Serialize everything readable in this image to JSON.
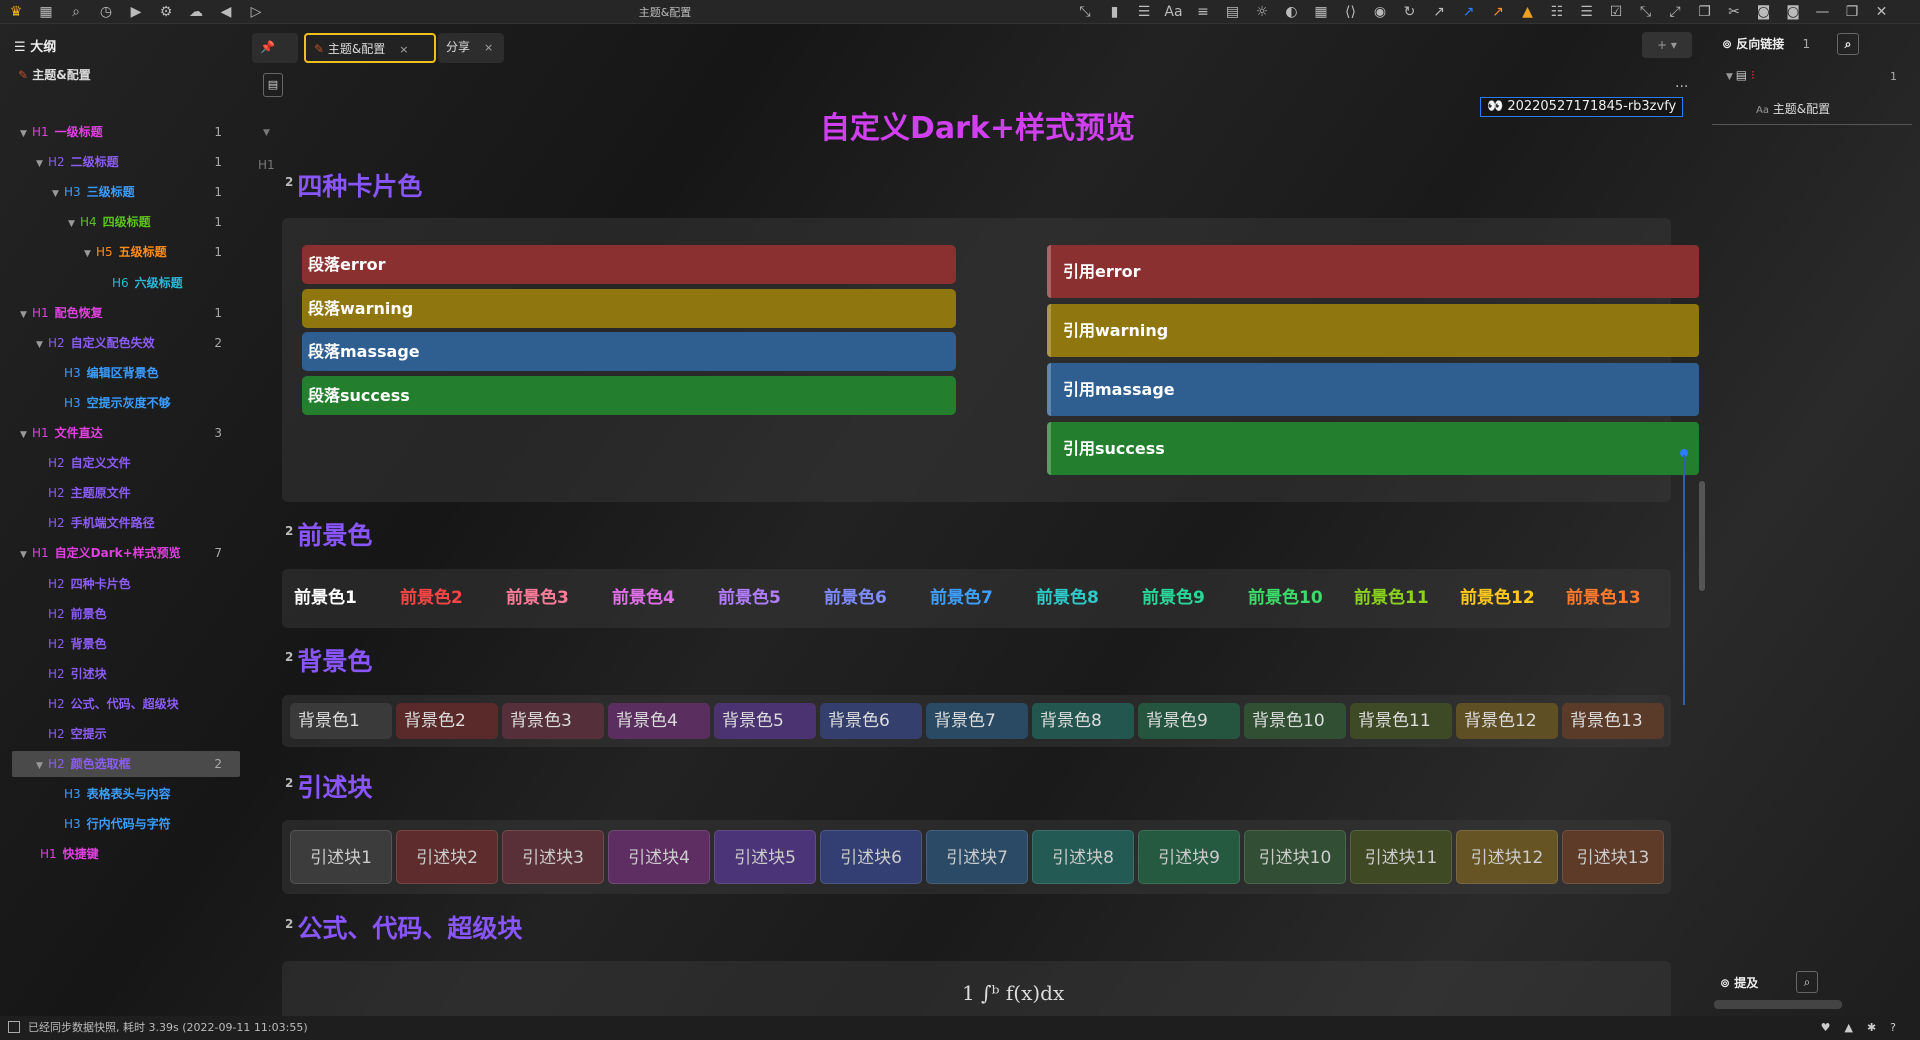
{
  "window": {
    "title": "主题&配置"
  },
  "toolbar": {
    "left_icons": [
      "crown-icon",
      "calendar-icon",
      "search-icon",
      "history-icon",
      "play-icon",
      "gear-icon",
      "cloud-icon",
      "back-icon",
      "forward-icon"
    ],
    "right_icons": [
      "collapse-icon",
      "bookmark-icon",
      "outline-icon",
      "font-icon",
      "align-icon",
      "list-panel-icon",
      "bulb-icon",
      "theme-icon",
      "keyboard-icon",
      "code-icon",
      "eye-icon",
      "refresh-icon",
      "arrow-up-right-icon",
      "arrow-blue-icon",
      "arrow-orange-icon",
      "image-icon",
      "bullet-list-icon",
      "numbered-list-icon",
      "checkbox-icon",
      "shrink-icon",
      "expand-icon",
      "copy-icon",
      "cut-icon",
      "bucket-icon",
      "bucket2-icon",
      "minimize-icon",
      "restore-icon",
      "close-icon"
    ]
  },
  "sidebar": {
    "title": "大纲",
    "doc": "主题&配置",
    "items": [
      {
        "h": "H1",
        "text": "一级标题",
        "count": "1",
        "level": 1,
        "arrow": true
      },
      {
        "h": "H2",
        "text": "二级标题",
        "count": "1",
        "level": 2,
        "arrow": true
      },
      {
        "h": "H3",
        "text": "三级标题",
        "count": "1",
        "level": 3,
        "arrow": true
      },
      {
        "h": "H4",
        "text": "四级标题",
        "count": "1",
        "level": 4,
        "arrow": true
      },
      {
        "h": "H5",
        "text": "五级标题",
        "count": "1",
        "level": 5,
        "arrow": true
      },
      {
        "h": "H6",
        "text": "六级标题",
        "count": "",
        "level": 6,
        "arrow": false
      },
      {
        "h": "H1",
        "text": "配色恢复",
        "count": "1",
        "level": 1,
        "arrow": true
      },
      {
        "h": "H2",
        "text": "自定义配色失效",
        "count": "2",
        "level": 2,
        "arrow": true
      },
      {
        "h": "H3",
        "text": "编辑区背景色",
        "count": "",
        "level": 3,
        "arrow": false
      },
      {
        "h": "H3",
        "text": "空提示灰度不够",
        "count": "",
        "level": 3,
        "arrow": false
      },
      {
        "h": "H1",
        "text": "文件直达",
        "count": "3",
        "level": 1,
        "arrow": true
      },
      {
        "h": "H2",
        "text": "自定义文件",
        "count": "",
        "level": 2,
        "arrow": false
      },
      {
        "h": "H2",
        "text": "主题原文件",
        "count": "",
        "level": 2,
        "arrow": false
      },
      {
        "h": "H2",
        "text": "手机端文件路径",
        "count": "",
        "level": 2,
        "arrow": false
      },
      {
        "h": "H1",
        "text": "自定义Dark+样式预览",
        "count": "7",
        "level": 1,
        "arrow": true
      },
      {
        "h": "H2",
        "text": "四种卡片色",
        "count": "",
        "level": 2,
        "arrow": false
      },
      {
        "h": "H2",
        "text": "前景色",
        "count": "",
        "level": 2,
        "arrow": false
      },
      {
        "h": "H2",
        "text": "背景色",
        "count": "",
        "level": 2,
        "arrow": false
      },
      {
        "h": "H2",
        "text": "引述块",
        "count": "",
        "level": 2,
        "arrow": false
      },
      {
        "h": "H2",
        "text": "公式、代码、超级块",
        "count": "",
        "level": 2,
        "arrow": false
      },
      {
        "h": "H2",
        "text": "空提示",
        "count": "",
        "level": 2,
        "arrow": false
      },
      {
        "h": "H2",
        "text": "颜色选取框",
        "count": "2",
        "level": 2,
        "arrow": true,
        "selected": true
      },
      {
        "h": "H3",
        "text": "表格表头与内容",
        "count": "",
        "level": 3,
        "arrow": false
      },
      {
        "h": "H3",
        "text": "行内代码与字符",
        "count": "",
        "level": 3,
        "arrow": false
      },
      {
        "h": "H1",
        "text": "快捷键",
        "count": "",
        "level": 0,
        "arrow": false
      }
    ],
    "level_colors": {
      "1": "#e040e0",
      "2": "#8b5cf6",
      "3": "#3b9cff",
      "4": "#5cc21c",
      "5": "#ff8c1a",
      "6": "#2ab8d8"
    }
  },
  "tabs": [
    {
      "label": "主题&配置",
      "active": true
    },
    {
      "label": "分享",
      "active": false
    }
  ],
  "editor": {
    "title": "自定义Dark+样式预览",
    "title_sup": "+",
    "doc_id": "20220527171845-rb3zvfy",
    "h1_marker": "H1",
    "more": "...",
    "sections": {
      "cards": {
        "heading": "四种卡片色",
        "level": "2"
      },
      "fg": {
        "heading": "前景色",
        "level": "2"
      },
      "bg": {
        "heading": "背景色",
        "level": "2"
      },
      "quote": {
        "heading": "引述块",
        "level": "2"
      },
      "formula": {
        "heading": "公式、代码、超级块",
        "level": "2"
      }
    },
    "para_cards": [
      {
        "label": "段落error",
        "color": "#8b3030"
      },
      {
        "label": "段落warning",
        "color": "#8f760f"
      },
      {
        "label": "段落massage",
        "color": "#2f5e90"
      },
      {
        "label": "段落success",
        "color": "#237f2d"
      }
    ],
    "quote_cards": [
      {
        "label": "引用error",
        "color": "#8b3030"
      },
      {
        "label": "引用warning",
        "color": "#8f760f"
      },
      {
        "label": "引用massage",
        "color": "#2f5e90"
      },
      {
        "label": "引用success",
        "color": "#237f2d"
      }
    ],
    "fg_colors": [
      {
        "label": "前景色1",
        "color": "#ffffff"
      },
      {
        "label": "前景色2",
        "color": "#ff4545"
      },
      {
        "label": "前景色3",
        "color": "#ff7d9a"
      },
      {
        "label": "前景色4",
        "color": "#e070e8"
      },
      {
        "label": "前景色5",
        "color": "#b27cff"
      },
      {
        "label": "前景色6",
        "color": "#7f8cff"
      },
      {
        "label": "前景色7",
        "color": "#3da0ff"
      },
      {
        "label": "前景色8",
        "color": "#2fc9c9"
      },
      {
        "label": "前景色9",
        "color": "#28d89a"
      },
      {
        "label": "前景色10",
        "color": "#3ddc6a"
      },
      {
        "label": "前景色11",
        "color": "#8ad21e"
      },
      {
        "label": "前景色12",
        "color": "#ffc81e"
      },
      {
        "label": "前景色13",
        "color": "#ff7a2a"
      }
    ],
    "bg_colors": [
      {
        "label": "背景色1",
        "color": "#3a3a3a"
      },
      {
        "label": "背景色2",
        "color": "#5a2a2a"
      },
      {
        "label": "背景色3",
        "color": "#55303a"
      },
      {
        "label": "背景色4",
        "color": "#5a2f5f"
      },
      {
        "label": "背景色5",
        "color": "#4a3370"
      },
      {
        "label": "背景色6",
        "color": "#343f6e"
      },
      {
        "label": "背景色7",
        "color": "#2a4a63"
      },
      {
        "label": "背景色8",
        "color": "#245650"
      },
      {
        "label": "背景色9",
        "color": "#25553e"
      },
      {
        "label": "背景色10",
        "color": "#304f33"
      },
      {
        "label": "背景色11",
        "color": "#3d4a25"
      },
      {
        "label": "背景色12",
        "color": "#5f4f25"
      },
      {
        "label": "背景色13",
        "color": "#5a3a28"
      }
    ],
    "quote_blocks": [
      {
        "label": "引述块1",
        "color": "#3c3c3c"
      },
      {
        "label": "引述块2",
        "color": "#5e2c2c"
      },
      {
        "label": "引述块3",
        "color": "#5a3038"
      },
      {
        "label": "引述块4",
        "color": "#5e2e62"
      },
      {
        "label": "引述块5",
        "color": "#4c3478"
      },
      {
        "label": "引述块6",
        "color": "#333f72"
      },
      {
        "label": "引述块7",
        "color": "#2a4a66"
      },
      {
        "label": "引述块8",
        "color": "#245a54"
      },
      {
        "label": "引述块9",
        "color": "#255a40"
      },
      {
        "label": "引述块10",
        "color": "#324f35"
      },
      {
        "label": "引述块11",
        "color": "#3f4a25"
      },
      {
        "label": "引述块12",
        "color": "#665425"
      },
      {
        "label": "引述块13",
        "color": "#5e3a28"
      }
    ],
    "formula_preview": "1   ∫ᵇ f(x)dx"
  },
  "right_panel": {
    "backlinks_label": "反向链接",
    "backlinks_count": "1",
    "doc_count": "1",
    "doc_title": "主题&配置",
    "font_marker": "Aa",
    "mentions_label": "提及"
  },
  "status": {
    "text": "已经同步数据快照, 耗时 3.39s (2022-09-11 11:03:55)"
  }
}
